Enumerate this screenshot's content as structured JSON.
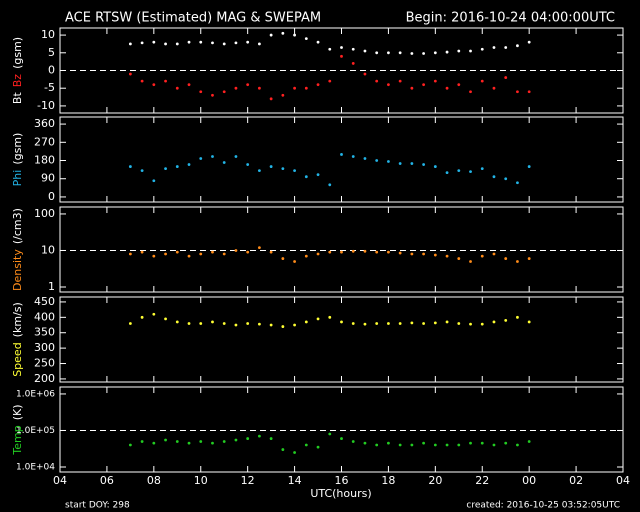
{
  "header": {
    "title": "ACE RTSW (Estimated) MAG & SWEPAM",
    "begin": "Begin: 2016-10-24 04:00:00UTC"
  },
  "footer": {
    "xlabel": "UTC(hours)",
    "start": "start DOY: 298",
    "created": "created: 2016-10-25 03:52:05UTC"
  },
  "chart_data": [
    {
      "type": "scatter",
      "ylabel": [
        {
          "text": "Bt",
          "color": "#ffffff"
        },
        {
          "text": "Bz",
          "color": "#ff2020"
        },
        {
          "text": "(gsm)",
          "color": "#ffffff"
        }
      ],
      "xlim": [
        4,
        28
      ],
      "ylim": [
        -12,
        12
      ],
      "yticks": [
        -10,
        -5,
        0,
        5,
        10
      ],
      "reference_line": 0,
      "x": [
        7,
        7.5,
        8,
        8.5,
        9,
        9.5,
        10,
        10.5,
        11,
        11.5,
        12,
        12.5,
        13,
        13.5,
        14,
        14.5,
        15,
        15.5,
        16,
        16.5,
        17,
        17.5,
        18,
        18.5,
        19,
        19.5,
        20,
        20.5,
        21,
        21.5,
        22,
        22.5,
        23,
        23.5,
        24
      ],
      "series": [
        {
          "name": "Bt",
          "color": "#ffffff",
          "values": [
            7.5,
            7.8,
            8,
            7.5,
            7.5,
            8,
            8,
            7.8,
            7.5,
            7.8,
            8,
            7.5,
            10,
            10.5,
            10,
            9,
            8,
            6,
            6.5,
            6,
            5.5,
            5,
            5,
            5,
            4.8,
            4.8,
            5,
            5.2,
            5.5,
            5.5,
            6,
            6.5,
            6.5,
            7,
            8
          ]
        },
        {
          "name": "Bz",
          "color": "#ff2020",
          "values": [
            -1,
            -3,
            -4,
            -3,
            -5,
            -4,
            -6,
            -7,
            -6,
            -5,
            -4,
            -5,
            -8,
            -7,
            -5,
            -5,
            -4,
            -3,
            4,
            2,
            -1,
            -3,
            -4,
            -3,
            -5,
            -4,
            -3,
            -5,
            -4,
            -6,
            -3,
            -5,
            -2,
            -6,
            -6
          ]
        }
      ]
    },
    {
      "type": "scatter",
      "ylabel": [
        {
          "text": "Phi",
          "color": "#22b4e6"
        },
        {
          "text": "(gsm)",
          "color": "#ffffff"
        }
      ],
      "xlim": [
        4,
        28
      ],
      "ylim": [
        -25,
        395
      ],
      "yticks": [
        0,
        90,
        180,
        270,
        360
      ],
      "x": [
        7,
        7.5,
        8,
        8.5,
        9,
        9.5,
        10,
        10.5,
        11,
        11.5,
        12,
        12.5,
        13,
        13.5,
        14,
        14.5,
        15,
        15.5,
        16,
        16.5,
        17,
        17.5,
        18,
        18.5,
        19,
        19.5,
        20,
        20.5,
        21,
        21.5,
        22,
        22.5,
        23,
        23.5,
        24
      ],
      "series": [
        {
          "name": "Phi",
          "color": "#22b4e6",
          "values": [
            150,
            130,
            80,
            140,
            150,
            160,
            190,
            200,
            170,
            200,
            160,
            130,
            150,
            140,
            130,
            100,
            110,
            60,
            210,
            200,
            190,
            180,
            175,
            165,
            165,
            160,
            150,
            120,
            130,
            125,
            140,
            100,
            90,
            70,
            150
          ]
        }
      ]
    },
    {
      "type": "scatter",
      "log": true,
      "ylabel": [
        {
          "text": "Density",
          "color": "#ff8c1a"
        },
        {
          "text": "(/cm3)",
          "color": "#ffffff"
        }
      ],
      "xlim": [
        4,
        28
      ],
      "ylim": [
        0.73,
        155
      ],
      "yticks": [
        1,
        10,
        100
      ],
      "reference_line": 10,
      "x": [
        7,
        7.5,
        8,
        8.5,
        9,
        9.5,
        10,
        10.5,
        11,
        11.5,
        12,
        12.5,
        13,
        13.5,
        14,
        14.5,
        15,
        15.5,
        16,
        16.5,
        17,
        17.5,
        18,
        18.5,
        19,
        19.5,
        20,
        20.5,
        21,
        21.5,
        22,
        22.5,
        23,
        23.5,
        24
      ],
      "series": [
        {
          "name": "Density",
          "color": "#ff8c1a",
          "values": [
            8,
            9,
            7,
            8,
            9,
            7,
            8,
            9,
            8,
            10,
            9,
            12,
            9,
            6,
            5,
            7,
            8,
            9,
            9,
            9.5,
            9.5,
            9,
            9,
            8.5,
            8,
            8,
            7.5,
            7,
            6,
            5,
            7,
            8,
            6,
            5,
            6
          ]
        }
      ]
    },
    {
      "type": "scatter",
      "ylabel": [
        {
          "text": "Speed",
          "color": "#ffff33"
        },
        {
          "text": "(km/s)",
          "color": "#ffffff"
        }
      ],
      "xlim": [
        4,
        28
      ],
      "ylim": [
        190,
        466
      ],
      "yticks": [
        200,
        250,
        300,
        350,
        400,
        450
      ],
      "x": [
        7,
        7.5,
        8,
        8.5,
        9,
        9.5,
        10,
        10.5,
        11,
        11.5,
        12,
        12.5,
        13,
        13.5,
        14,
        14.5,
        15,
        15.5,
        16,
        16.5,
        17,
        17.5,
        18,
        18.5,
        19,
        19.5,
        20,
        20.5,
        21,
        21.5,
        22,
        22.5,
        23,
        23.5,
        24
      ],
      "series": [
        {
          "name": "Speed",
          "color": "#ffff33",
          "values": [
            380,
            400,
            410,
            395,
            385,
            380,
            380,
            385,
            380,
            375,
            380,
            378,
            375,
            370,
            375,
            385,
            395,
            400,
            385,
            380,
            378,
            380,
            380,
            380,
            382,
            380,
            382,
            385,
            380,
            378,
            378,
            385,
            390,
            400,
            385
          ]
        }
      ]
    },
    {
      "type": "scatter",
      "log": true,
      "ylabel": [
        {
          "text": "Temp",
          "color": "#22cc22"
        },
        {
          "text": "(K)",
          "color": "#ffffff"
        }
      ],
      "xlim": [
        4,
        28
      ],
      "ylim": [
        7300,
        1550000
      ],
      "yticks": [
        {
          "value": 10000,
          "label": "1.0E+04"
        },
        {
          "value": 100000,
          "label": "1.0E+05"
        },
        {
          "value": 1000000,
          "label": "1.0E+06"
        }
      ],
      "reference_line": 100000,
      "xticks": [
        {
          "value": 4,
          "label": "04"
        },
        {
          "value": 6,
          "label": "06"
        },
        {
          "value": 8,
          "label": "08"
        },
        {
          "value": 10,
          "label": "10"
        },
        12,
        14,
        16,
        18,
        20,
        22,
        {
          "value": 24,
          "label": "00"
        },
        {
          "value": 26,
          "label": "02"
        },
        {
          "value": 28,
          "label": "04"
        }
      ],
      "x": [
        7,
        7.5,
        8,
        8.5,
        9,
        9.5,
        10,
        10.5,
        11,
        11.5,
        12,
        12.5,
        13,
        13.5,
        14,
        14.5,
        15,
        15.5,
        16,
        16.5,
        17,
        17.5,
        18,
        18.5,
        19,
        19.5,
        20,
        20.5,
        21,
        21.5,
        22,
        22.5,
        23,
        23.5,
        24
      ],
      "series": [
        {
          "name": "Temp",
          "color": "#22cc22",
          "values": [
            40000,
            50000,
            45000,
            55000,
            50000,
            45000,
            50000,
            45000,
            50000,
            55000,
            60000,
            70000,
            60000,
            30000,
            25000,
            40000,
            35000,
            80000,
            60000,
            50000,
            45000,
            40000,
            45000,
            40000,
            40000,
            45000,
            40000,
            40000,
            40000,
            45000,
            45000,
            40000,
            45000,
            40000,
            50000
          ]
        }
      ]
    }
  ]
}
